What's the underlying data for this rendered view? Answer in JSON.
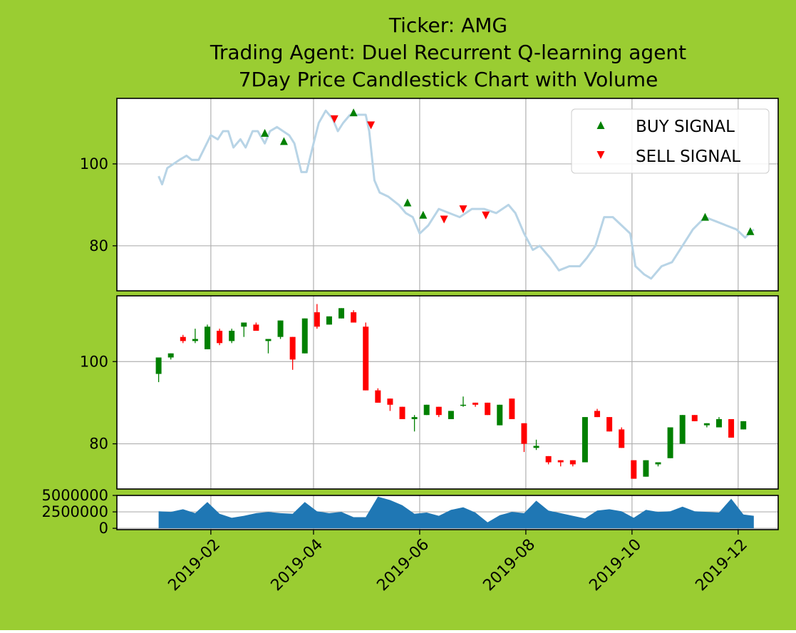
{
  "background": "#9acd32",
  "title": {
    "line1": "Ticker: AMG",
    "line2": "Trading Agent: Duel Recurrent Q-learning agent",
    "line3": "7Day Price Candlestick Chart with Volume"
  },
  "colors": {
    "price_line": "#b8d4e6",
    "buy": "#008000",
    "sell": "#ff0000",
    "volume": "#1f77b4",
    "grid": "#b0b0b0"
  },
  "chart_data": [
    {
      "type": "line",
      "panel": "price",
      "x_axis": "date",
      "ylim": [
        69,
        116
      ],
      "yticks": [
        80,
        100
      ],
      "grid": true,
      "legend": {
        "placement": "top-right",
        "entries": [
          "BUY SIGNAL",
          "SELL SIGNAL"
        ]
      },
      "price": [
        [
          "2019-01-02",
          97
        ],
        [
          "2019-01-04",
          95
        ],
        [
          "2019-01-07",
          99
        ],
        [
          "2019-01-14",
          101
        ],
        [
          "2019-01-18",
          102
        ],
        [
          "2019-01-21",
          101
        ],
        [
          "2019-01-25",
          101
        ],
        [
          "2019-02-01",
          107
        ],
        [
          "2019-02-05",
          106
        ],
        [
          "2019-02-08",
          108
        ],
        [
          "2019-02-11",
          108
        ],
        [
          "2019-02-14",
          104
        ],
        [
          "2019-02-18",
          106
        ],
        [
          "2019-02-21",
          104
        ],
        [
          "2019-02-25",
          108
        ],
        [
          "2019-02-28",
          108
        ],
        [
          "2019-03-04",
          105
        ],
        [
          "2019-03-07",
          108
        ],
        [
          "2019-03-11",
          109
        ],
        [
          "2019-03-18",
          107
        ],
        [
          "2019-03-21",
          105
        ],
        [
          "2019-03-25",
          98
        ],
        [
          "2019-03-28",
          98
        ],
        [
          "2019-04-01",
          105
        ],
        [
          "2019-04-04",
          110
        ],
        [
          "2019-04-08",
          113
        ],
        [
          "2019-04-12",
          111
        ],
        [
          "2019-04-15",
          108
        ],
        [
          "2019-04-18",
          110
        ],
        [
          "2019-04-22",
          112
        ],
        [
          "2019-04-26",
          112
        ],
        [
          "2019-05-01",
          112
        ],
        [
          "2019-05-03",
          108
        ],
        [
          "2019-05-06",
          96
        ],
        [
          "2019-05-09",
          93
        ],
        [
          "2019-05-14",
          92
        ],
        [
          "2019-05-20",
          90
        ],
        [
          "2019-05-24",
          88
        ],
        [
          "2019-05-28",
          87
        ],
        [
          "2019-06-01",
          83
        ],
        [
          "2019-06-06",
          85
        ],
        [
          "2019-06-12",
          89
        ],
        [
          "2019-06-18",
          88
        ],
        [
          "2019-06-24",
          87
        ],
        [
          "2019-07-01",
          89
        ],
        [
          "2019-07-08",
          89
        ],
        [
          "2019-07-15",
          88
        ],
        [
          "2019-07-22",
          90
        ],
        [
          "2019-07-26",
          88
        ],
        [
          "2019-07-31",
          83
        ],
        [
          "2019-08-05",
          79
        ],
        [
          "2019-08-09",
          80
        ],
        [
          "2019-08-15",
          77
        ],
        [
          "2019-08-20",
          74
        ],
        [
          "2019-08-26",
          75
        ],
        [
          "2019-09-01",
          75
        ],
        [
          "2019-09-05",
          77
        ],
        [
          "2019-09-10",
          80
        ],
        [
          "2019-09-15",
          87
        ],
        [
          "2019-09-20",
          87
        ],
        [
          "2019-09-25",
          85
        ],
        [
          "2019-09-30",
          83
        ],
        [
          "2019-10-03",
          75
        ],
        [
          "2019-10-08",
          73
        ],
        [
          "2019-10-12",
          72
        ],
        [
          "2019-10-18",
          75
        ],
        [
          "2019-10-24",
          76
        ],
        [
          "2019-10-30",
          80
        ],
        [
          "2019-11-05",
          84
        ],
        [
          "2019-11-12",
          87
        ],
        [
          "2019-11-18",
          86
        ],
        [
          "2019-11-24",
          85
        ],
        [
          "2019-11-30",
          84
        ],
        [
          "2019-12-05",
          82
        ],
        [
          "2019-12-10",
          84
        ]
      ],
      "buy_signals": [
        [
          "2019-03-04",
          107.5
        ],
        [
          "2019-03-15",
          105.5
        ],
        [
          "2019-04-24",
          112.5
        ],
        [
          "2019-05-25",
          90.5
        ],
        [
          "2019-06-03",
          87.5
        ],
        [
          "2019-11-12",
          87
        ],
        [
          "2019-12-08",
          83.5
        ]
      ],
      "sell_signals": [
        [
          "2019-04-13",
          111
        ],
        [
          "2019-05-04",
          109.5
        ],
        [
          "2019-06-15",
          86.5
        ],
        [
          "2019-06-26",
          89
        ],
        [
          "2019-07-09",
          87.5
        ]
      ]
    },
    {
      "type": "candlestick",
      "panel": "candles",
      "x_axis": "date",
      "ylim": [
        69,
        116
      ],
      "yticks": [
        80,
        100
      ],
      "grid": true,
      "candles": [
        [
          "2019-01-02",
          97,
          101,
          95,
          101
        ],
        [
          "2019-01-09",
          101,
          102,
          100.5,
          102
        ],
        [
          "2019-01-16",
          106,
          106.5,
          104.5,
          105
        ],
        [
          "2019-01-23",
          105,
          108,
          104.5,
          105.5
        ],
        [
          "2019-01-30",
          103,
          109,
          103,
          108.5
        ],
        [
          "2019-02-06",
          107.5,
          108,
          104,
          104.5
        ],
        [
          "2019-02-13",
          105,
          108,
          104.5,
          107.5
        ],
        [
          "2019-02-20",
          108.5,
          109.5,
          106,
          109.5
        ],
        [
          "2019-02-27",
          109,
          109.5,
          107.5,
          107.5
        ],
        [
          "2019-03-06",
          105,
          105.5,
          102,
          105.5
        ],
        [
          "2019-03-13",
          106,
          110,
          105.5,
          110
        ],
        [
          "2019-03-20",
          106,
          106,
          98,
          100.5
        ],
        [
          "2019-03-27",
          102,
          110.5,
          102,
          110.5
        ],
        [
          "2019-04-03",
          112,
          114,
          108,
          108.5
        ],
        [
          "2019-04-10",
          109,
          111,
          109,
          111
        ],
        [
          "2019-04-17",
          110.5,
          113,
          110.5,
          113
        ],
        [
          "2019-04-24",
          112,
          112.5,
          109.5,
          109.5
        ],
        [
          "2019-05-01",
          108.5,
          109.5,
          93,
          93
        ],
        [
          "2019-05-08",
          93,
          93.5,
          90,
          90
        ],
        [
          "2019-05-15",
          91,
          91,
          88,
          89.5
        ],
        [
          "2019-05-22",
          89,
          89,
          86,
          86
        ],
        [
          "2019-05-29",
          86,
          87,
          83,
          86.5
        ],
        [
          "2019-06-05",
          87,
          89.5,
          87,
          89.5
        ],
        [
          "2019-06-12",
          89,
          89,
          86.5,
          87
        ],
        [
          "2019-06-19",
          86,
          88,
          86,
          88
        ],
        [
          "2019-06-26",
          89.5,
          91.5,
          89,
          89.5
        ],
        [
          "2019-07-03",
          90,
          90,
          89,
          89.5
        ],
        [
          "2019-07-10",
          90,
          90,
          87,
          87
        ],
        [
          "2019-07-17",
          84.5,
          89.5,
          84.5,
          89.5
        ],
        [
          "2019-07-24",
          91,
          91,
          86,
          86
        ],
        [
          "2019-07-31",
          85,
          85,
          78,
          80
        ],
        [
          "2019-08-07",
          79,
          81,
          78.5,
          79.5
        ],
        [
          "2019-08-14",
          77,
          77,
          75,
          75.5
        ],
        [
          "2019-08-21",
          76,
          76,
          74.5,
          75.5
        ],
        [
          "2019-08-28",
          76,
          76,
          74.5,
          75
        ],
        [
          "2019-09-04",
          75.5,
          86.5,
          75.5,
          86.5
        ],
        [
          "2019-09-11",
          88,
          88.5,
          86.5,
          86.5
        ],
        [
          "2019-09-18",
          86.5,
          86.5,
          83,
          83
        ],
        [
          "2019-09-25",
          83.5,
          84,
          79,
          79
        ],
        [
          "2019-10-02",
          76,
          76,
          71.5,
          71.5
        ],
        [
          "2019-10-09",
          72,
          76,
          72,
          76
        ],
        [
          "2019-10-16",
          75,
          75.5,
          74.5,
          75.5
        ],
        [
          "2019-10-23",
          76.5,
          84,
          76.5,
          84
        ],
        [
          "2019-10-30",
          80,
          87,
          80,
          87
        ],
        [
          "2019-11-06",
          87,
          87,
          85.5,
          85.5
        ],
        [
          "2019-11-13",
          84.5,
          85,
          84,
          85
        ],
        [
          "2019-11-20",
          84,
          86.5,
          84,
          86
        ],
        [
          "2019-11-27",
          86,
          86,
          81.5,
          81.5
        ],
        [
          "2019-12-04",
          83.5,
          85.5,
          83.5,
          85.5
        ]
      ]
    },
    {
      "type": "area",
      "panel": "volume",
      "x_axis": "date",
      "ylim": [
        -200000,
        5000000
      ],
      "yticks": [
        0,
        2500000,
        5000000
      ],
      "ytick_labels": [
        "0",
        "2500000",
        "5000000"
      ],
      "xticks": [
        "2019-02",
        "2019-04",
        "2019-06",
        "2019-08",
        "2019-10",
        "2019-12"
      ],
      "grid": true,
      "volume": [
        [
          "2019-01-02",
          2600000
        ],
        [
          "2019-01-09",
          2500000
        ],
        [
          "2019-01-16",
          2900000
        ],
        [
          "2019-01-23",
          2300000
        ],
        [
          "2019-01-30",
          4000000
        ],
        [
          "2019-02-06",
          2200000
        ],
        [
          "2019-02-13",
          1600000
        ],
        [
          "2019-02-20",
          1900000
        ],
        [
          "2019-02-27",
          2300000
        ],
        [
          "2019-03-06",
          2500000
        ],
        [
          "2019-03-13",
          2300000
        ],
        [
          "2019-03-20",
          2200000
        ],
        [
          "2019-03-27",
          4000000
        ],
        [
          "2019-04-03",
          2600000
        ],
        [
          "2019-04-10",
          2300000
        ],
        [
          "2019-04-17",
          2500000
        ],
        [
          "2019-04-24",
          1700000
        ],
        [
          "2019-05-01",
          1700000
        ],
        [
          "2019-05-08",
          4800000
        ],
        [
          "2019-05-15",
          4300000
        ],
        [
          "2019-05-22",
          3500000
        ],
        [
          "2019-05-29",
          2200000
        ],
        [
          "2019-06-05",
          2400000
        ],
        [
          "2019-06-12",
          1900000
        ],
        [
          "2019-06-19",
          2800000
        ],
        [
          "2019-06-26",
          3200000
        ],
        [
          "2019-07-03",
          2400000
        ],
        [
          "2019-07-10",
          900000
        ],
        [
          "2019-07-17",
          2000000
        ],
        [
          "2019-07-24",
          2500000
        ],
        [
          "2019-07-31",
          2300000
        ],
        [
          "2019-08-07",
          4200000
        ],
        [
          "2019-08-14",
          2700000
        ],
        [
          "2019-08-21",
          2300000
        ],
        [
          "2019-08-28",
          1900000
        ],
        [
          "2019-09-04",
          1500000
        ],
        [
          "2019-09-11",
          2700000
        ],
        [
          "2019-09-18",
          2900000
        ],
        [
          "2019-09-25",
          2600000
        ],
        [
          "2019-10-02",
          1600000
        ],
        [
          "2019-10-09",
          2800000
        ],
        [
          "2019-10-16",
          2500000
        ],
        [
          "2019-10-23",
          2600000
        ],
        [
          "2019-10-30",
          3300000
        ],
        [
          "2019-11-06",
          2600000
        ],
        [
          "2019-11-13",
          2500000
        ],
        [
          "2019-11-20",
          2400000
        ],
        [
          "2019-11-27",
          4500000
        ],
        [
          "2019-12-04",
          2100000
        ],
        [
          "2019-12-10",
          1900000
        ]
      ]
    }
  ]
}
